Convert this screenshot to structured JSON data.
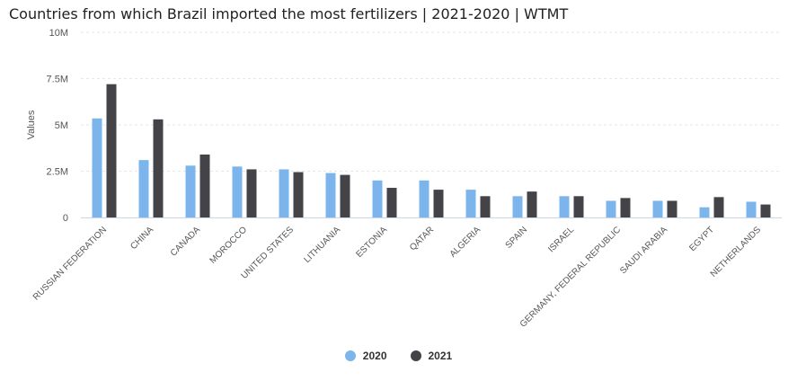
{
  "chart_data": {
    "type": "bar",
    "title": "Countries from which Brazil imported the most fertilizers | 2021-2020 | WTMT",
    "ylabel": "Values",
    "xlabel": "",
    "ylim": [
      0,
      10000000
    ],
    "yticks": [
      {
        "value": 0,
        "label": "0"
      },
      {
        "value": 2500000,
        "label": "2.5M"
      },
      {
        "value": 5000000,
        "label": "5M"
      },
      {
        "value": 7500000,
        "label": "7.5M"
      },
      {
        "value": 10000000,
        "label": "10M"
      }
    ],
    "grid": true,
    "legend_position": "bottom",
    "categories": [
      "RUSSIAN FEDERATION",
      "CHINA",
      "CANADA",
      "MOROCCO",
      "UNITED STATES",
      "LITHUANIA",
      "ESTONIA",
      "QATAR",
      "ALGERIA",
      "SPAIN",
      "ISRAEL",
      "GERMANY, FEDERAL REPUBLIC",
      "SAUDI ARABIA",
      "EGYPT",
      "NETHERLANDS"
    ],
    "series": [
      {
        "name": "2020",
        "color": "#7cb5ec",
        "values": [
          5350000,
          3100000,
          2800000,
          2750000,
          2600000,
          2400000,
          2000000,
          2000000,
          1500000,
          1150000,
          1150000,
          900000,
          900000,
          550000,
          850000
        ]
      },
      {
        "name": "2021",
        "color": "#434348",
        "values": [
          7200000,
          5300000,
          3400000,
          2600000,
          2450000,
          2300000,
          1600000,
          1500000,
          1150000,
          1400000,
          1150000,
          1050000,
          900000,
          1100000,
          700000
        ]
      }
    ]
  }
}
